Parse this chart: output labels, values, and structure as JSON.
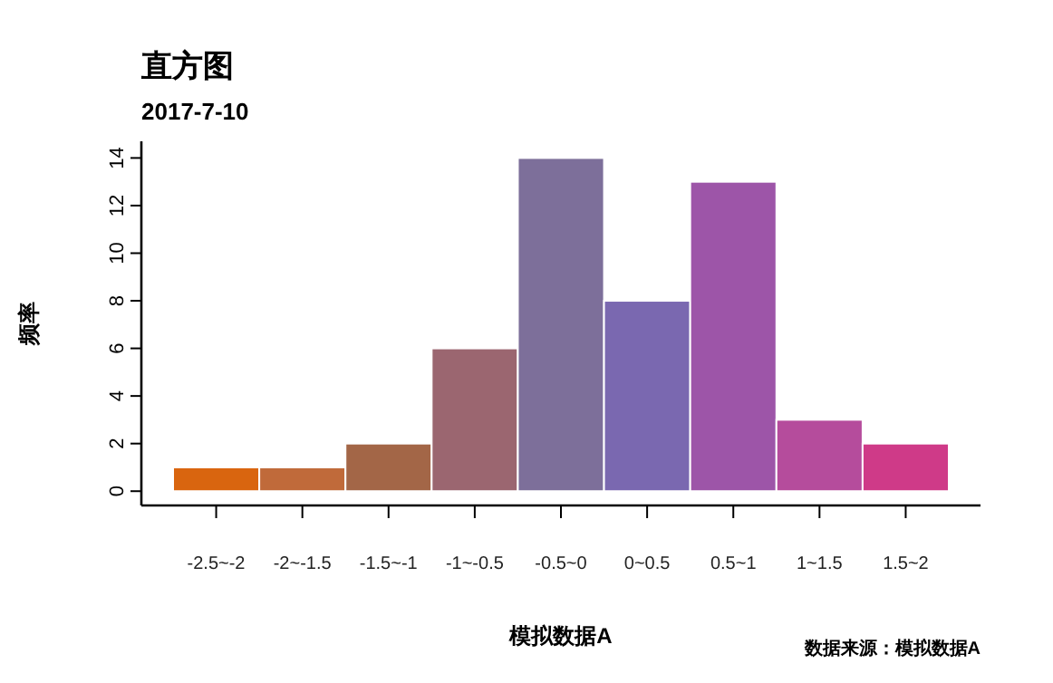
{
  "chart_data": {
    "type": "bar",
    "title": "直方图",
    "subtitle": "2017-7-10",
    "xlabel": "模拟数据A",
    "ylabel": "频率",
    "annotations": [
      "数据来源：模拟数据A"
    ],
    "categories": [
      "-2.5~-2",
      "-2~-1.5",
      "-1.5~-1",
      "-1~-0.5",
      "-0.5~0",
      "0~0.5",
      "0.5~1",
      "1~1.5",
      "1.5~2"
    ],
    "values": [
      1,
      1,
      2,
      6,
      14,
      8,
      13,
      3,
      2
    ],
    "colors": [
      "#d9650f",
      "#c06a3a",
      "#a36647",
      "#9b6670",
      "#7d6f9a",
      "#7a68b0",
      "#9d55a8",
      "#b54c9c",
      "#cf3a88"
    ],
    "ylim": [
      -0.6,
      14.7
    ],
    "yticks": [
      0,
      2,
      4,
      6,
      8,
      10,
      12,
      14
    ],
    "grid": false
  }
}
